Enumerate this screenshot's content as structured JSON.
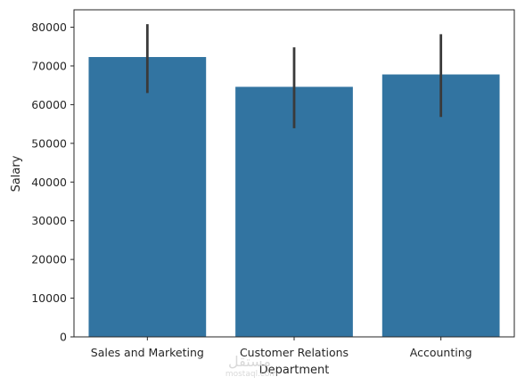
{
  "chart_data": {
    "type": "bar",
    "title": "",
    "xlabel": "Department",
    "ylabel": "Salary",
    "categories": [
      "Sales and Marketing",
      "Customer Relations",
      "Accounting"
    ],
    "values": [
      72300,
      64600,
      67800
    ],
    "error_bars": [
      {
        "low": 63000,
        "high": 80800
      },
      {
        "low": 53900,
        "high": 74800
      },
      {
        "low": 56800,
        "high": 78200
      }
    ],
    "ylim": [
      0,
      84500
    ],
    "yticks": [
      0,
      10000,
      20000,
      30000,
      40000,
      50000,
      60000,
      70000,
      80000
    ],
    "grid": false,
    "legend": "none",
    "colors": {
      "bar": "#3274a1",
      "error_bar": "#3a3a3a",
      "axis": "#262626"
    }
  },
  "watermark": {
    "main": "مستقل",
    "sub": "mostaql.com"
  }
}
